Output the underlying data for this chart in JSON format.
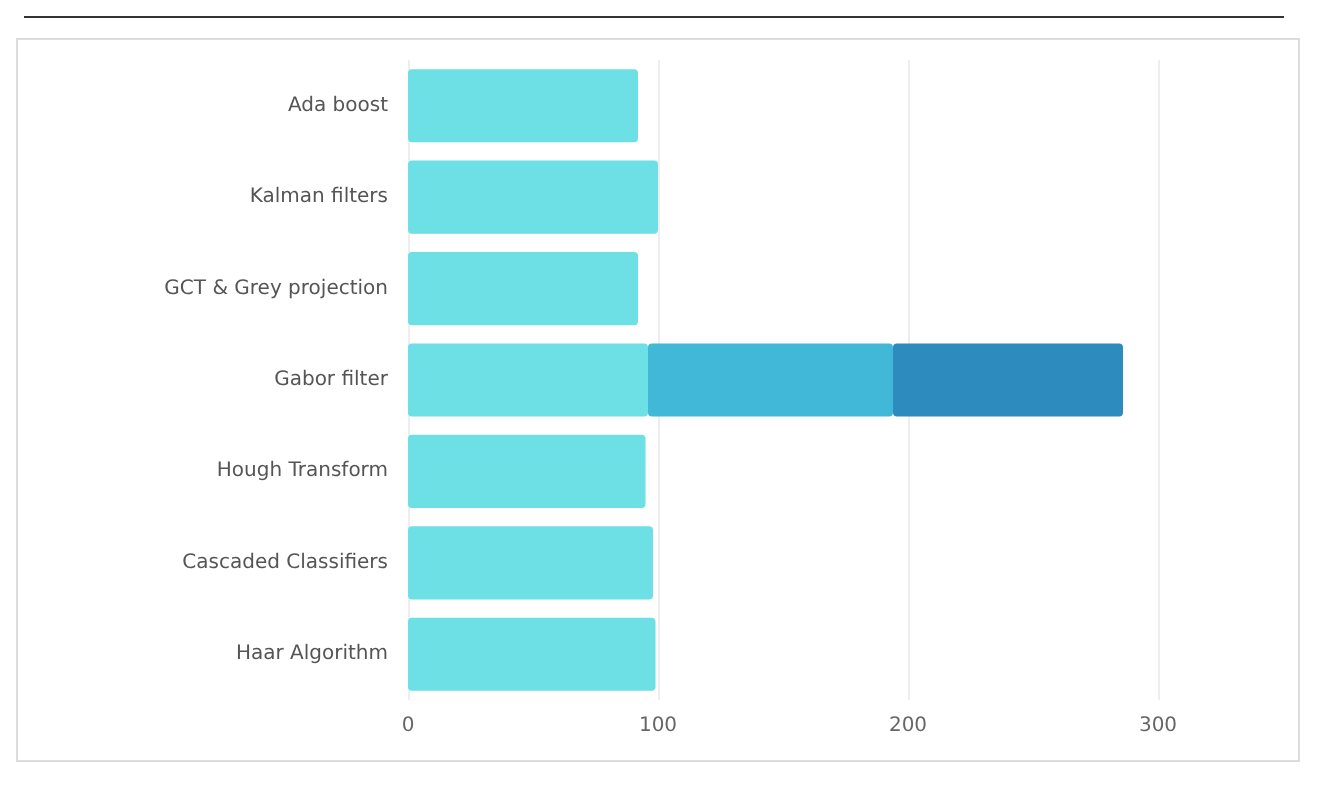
{
  "chart_data": {
    "type": "bar",
    "orientation": "horizontal",
    "stacked": true,
    "categories": [
      "Ada boost",
      "Kalman filters",
      "GCT & Grey projection",
      "Gabor filter",
      "Hough Transform",
      "Cascaded Classifiers",
      "Haar Algorithm"
    ],
    "series": [
      {
        "color": "#6de0e6",
        "values": [
          92,
          100,
          92,
          96,
          95,
          98,
          99
        ]
      },
      {
        "color": "#42b8d8",
        "values": [
          null,
          null,
          null,
          98,
          null,
          null,
          null
        ]
      },
      {
        "color": "#2e8bbd",
        "values": [
          null,
          null,
          null,
          92,
          null,
          null,
          null
        ]
      }
    ],
    "xlim": [
      0,
      300
    ],
    "xticks": [
      0,
      100,
      200,
      300
    ],
    "grid": "x"
  }
}
